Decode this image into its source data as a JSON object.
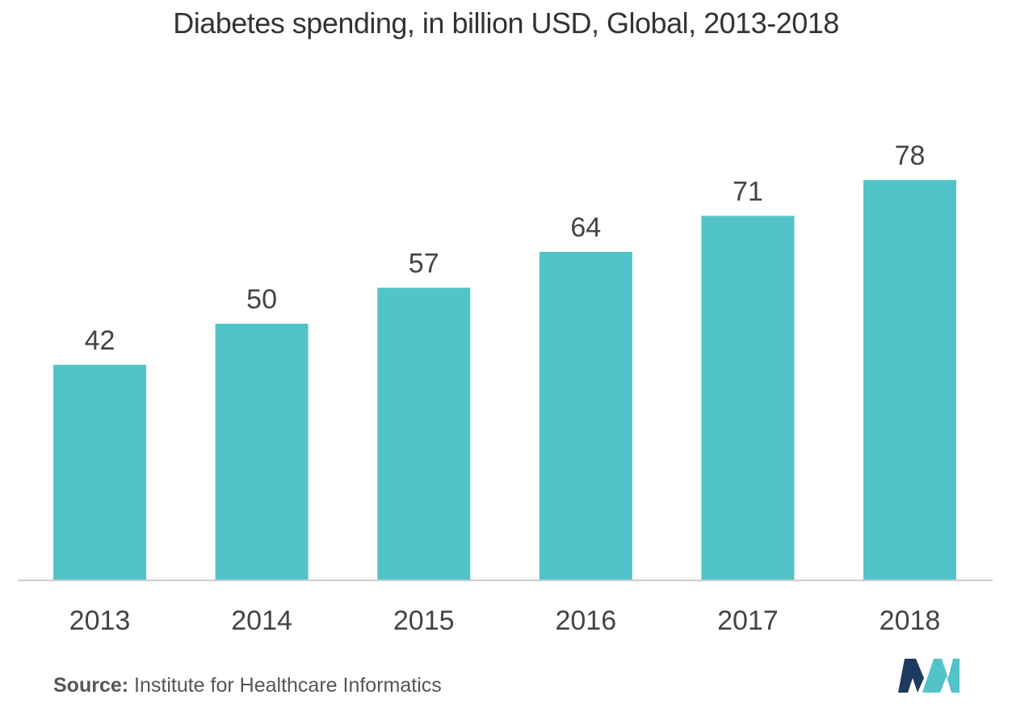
{
  "chart_data": {
    "type": "bar",
    "title": "Diabetes spending, in billion USD, Global, 2013-2018",
    "categories": [
      "2013",
      "2014",
      "2015",
      "2016",
      "2017",
      "2018"
    ],
    "values": [
      42,
      50,
      57,
      64,
      71,
      78
    ],
    "data_labels": [
      "42",
      "50",
      "57",
      "64",
      "71",
      "78"
    ],
    "xlabel": "",
    "ylabel": "",
    "ylim": [
      0,
      85
    ],
    "grid": false,
    "legend": "none",
    "bar_color": "#52c3c9",
    "axis_color": "#cccccc",
    "label_color": "#444444"
  },
  "source": {
    "label": "Source:",
    "text": " Institute for Healthcare Informatics"
  },
  "logo": {
    "icon": "mordor-intelligence-logo-icon",
    "colors": [
      "#1e3a5f",
      "#52c3c9"
    ]
  }
}
